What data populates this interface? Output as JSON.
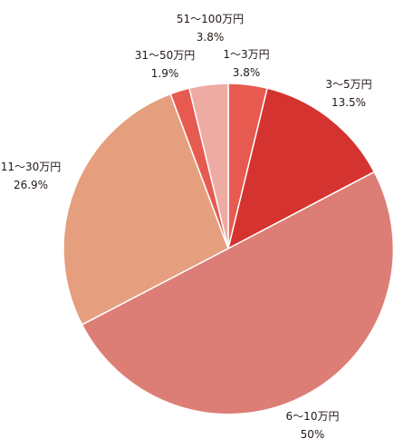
{
  "chart_data": {
    "type": "pie",
    "title": "",
    "start_angle_deg": 0,
    "direction": "clockwise",
    "slices": [
      {
        "label": "1〜3万円",
        "percent_label": "3.8%",
        "value": 3.8,
        "color": "#E65A4F"
      },
      {
        "label": "3〜5万円",
        "percent_label": "13.5%",
        "value": 13.5,
        "color": "#D5332F"
      },
      {
        "label": "6〜10万円",
        "percent_label": "50%",
        "value": 50,
        "color": "#DC7E75"
      },
      {
        "label": "11〜30万円",
        "percent_label": "26.9%",
        "value": 26.9,
        "color": "#E59F7E"
      },
      {
        "label": "31〜50万円",
        "percent_label": "1.9%",
        "value": 1.9,
        "color": "#E65A4F"
      },
      {
        "label": "51〜100万円",
        "percent_label": "3.8%",
        "value": 3.8,
        "color": "#EDABA4"
      }
    ]
  }
}
